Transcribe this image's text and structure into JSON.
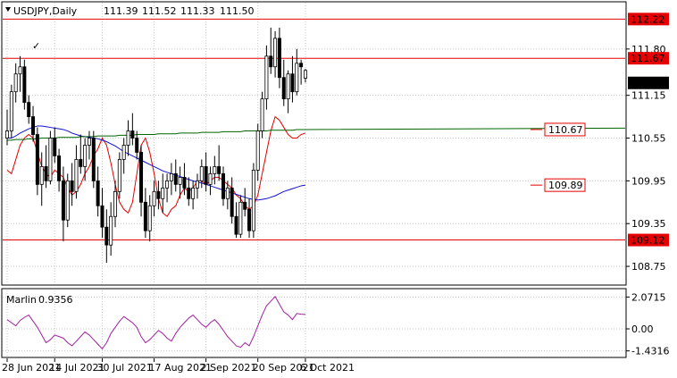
{
  "header": {
    "symbol": "USDJPY,Daily",
    "open": "111.39",
    "high": "111.52",
    "low": "111.33",
    "close": "111.50"
  },
  "price_axis_labels": [
    "111.80",
    "111.15",
    "110.55",
    "109.95",
    "109.35",
    "108.75"
  ],
  "indicator_axis_labels": [
    "2.0715",
    "0.00",
    "-1.4316"
  ],
  "date_labels": [
    "28 Jun 2021",
    "14 Jul 2021",
    "30 Jul 2021",
    "17 Aug 2021",
    "2 Sep 2021",
    "20 Sep 2021",
    "6 Oct 2021"
  ],
  "levels": [
    {
      "price": 112.22,
      "label": "112.22",
      "color": "#e60000",
      "style": "filled"
    },
    {
      "price": 111.67,
      "label": "111.67",
      "color": "#e60000",
      "style": "filled"
    },
    {
      "price": 109.12,
      "label": "109.12",
      "color": "#e60000",
      "style": "filled"
    }
  ],
  "current_price": {
    "value": 111.5,
    "label": "111.50",
    "color": "#000000"
  },
  "ma_labels": [
    {
      "price": 110.67,
      "label": "110.67",
      "color": "#e60000"
    },
    {
      "price": 109.89,
      "label": "109.89",
      "color": "#e60000"
    }
  ],
  "checkmark": {
    "glyph": "✓",
    "color": "#e60000"
  },
  "indicator": {
    "name": "Marlin",
    "value": "0.9356",
    "color": "#a020a0"
  },
  "colors": {
    "bull": "#ffffff",
    "bear": "#000000",
    "ma_red": "#e60000",
    "ma_blue": "#1010d0",
    "ma_green": "#006400",
    "grid": "#c8c8c8"
  },
  "chart_data": [
    {
      "type": "candlestick",
      "title": "USDJPY,Daily",
      "ylim": [
        108.5,
        112.45
      ],
      "y_ticks": [
        111.8,
        111.15,
        110.55,
        109.95,
        109.35,
        108.75
      ],
      "x_labels": [
        "28 Jun 2021",
        "14 Jul 2021",
        "30 Jul 2021",
        "17 Aug 2021",
        "2 Sep 2021",
        "20 Sep 2021",
        "6 Oct 2021"
      ],
      "horizontal_levels": [
        112.22,
        111.67,
        109.12
      ],
      "candles": [
        [
          110.55,
          110.95,
          110.45,
          110.65
        ],
        [
          110.65,
          111.3,
          110.55,
          111.2
        ],
        [
          111.2,
          111.6,
          111.05,
          111.45
        ],
        [
          111.45,
          111.7,
          111.2,
          111.55
        ],
        [
          111.55,
          111.65,
          110.95,
          111.05
        ],
        [
          111.05,
          111.15,
          110.75,
          110.85
        ],
        [
          110.85,
          111.0,
          110.5,
          110.6
        ],
        [
          110.6,
          110.7,
          109.75,
          109.9
        ],
        [
          109.9,
          110.35,
          109.6,
          110.15
        ],
        [
          110.15,
          110.45,
          109.85,
          109.95
        ],
        [
          109.95,
          110.65,
          109.9,
          110.55
        ],
        [
          110.55,
          110.7,
          110.2,
          110.3
        ],
        [
          110.3,
          110.4,
          109.8,
          109.95
        ],
        [
          109.95,
          110.15,
          109.1,
          109.4
        ],
        [
          109.4,
          110.05,
          109.3,
          109.95
        ],
        [
          109.95,
          110.2,
          109.6,
          109.8
        ],
        [
          109.8,
          110.45,
          109.7,
          110.25
        ],
        [
          110.25,
          110.6,
          110.05,
          110.15
        ],
        [
          110.15,
          110.55,
          109.95,
          110.45
        ],
        [
          110.45,
          110.65,
          110.25,
          110.55
        ],
        [
          110.55,
          110.65,
          109.85,
          109.95
        ],
        [
          109.95,
          110.15,
          109.45,
          109.6
        ],
        [
          109.6,
          109.85,
          109.15,
          109.3
        ],
        [
          109.3,
          109.55,
          108.8,
          109.05
        ],
        [
          109.05,
          109.65,
          108.9,
          109.45
        ],
        [
          109.45,
          109.95,
          109.3,
          109.8
        ],
        [
          109.8,
          110.35,
          109.7,
          110.25
        ],
        [
          110.25,
          110.55,
          110.05,
          110.45
        ],
        [
          110.45,
          110.8,
          110.3,
          110.65
        ],
        [
          110.65,
          110.9,
          110.45,
          110.55
        ],
        [
          110.55,
          110.65,
          110.25,
          110.35
        ],
        [
          110.35,
          110.45,
          109.45,
          109.65
        ],
        [
          109.65,
          109.85,
          109.15,
          109.25
        ],
        [
          109.25,
          109.75,
          109.1,
          109.6
        ],
        [
          109.6,
          109.95,
          109.45,
          109.8
        ],
        [
          109.8,
          109.95,
          109.55,
          109.7
        ],
        [
          109.7,
          110.05,
          109.5,
          109.85
        ],
        [
          109.85,
          110.05,
          109.65,
          109.95
        ],
        [
          109.95,
          110.2,
          109.75,
          110.05
        ],
        [
          110.05,
          110.25,
          109.8,
          109.9
        ],
        [
          109.9,
          110.15,
          109.7,
          110.0
        ],
        [
          110.0,
          110.2,
          109.75,
          109.85
        ],
        [
          109.85,
          110.0,
          109.6,
          109.7
        ],
        [
          109.7,
          109.95,
          109.55,
          109.85
        ],
        [
          109.85,
          110.05,
          109.7,
          109.95
        ],
        [
          109.95,
          110.25,
          109.85,
          110.15
        ],
        [
          110.15,
          110.35,
          109.8,
          109.9
        ],
        [
          109.9,
          110.15,
          109.75,
          110.05
        ],
        [
          110.05,
          110.3,
          109.9,
          110.15
        ],
        [
          110.15,
          110.45,
          109.95,
          110.05
        ],
        [
          110.05,
          110.15,
          109.6,
          109.7
        ],
        [
          109.7,
          109.95,
          109.55,
          109.85
        ],
        [
          109.85,
          110.0,
          109.35,
          109.45
        ],
        [
          109.45,
          109.65,
          109.15,
          109.2
        ],
        [
          109.2,
          109.75,
          109.15,
          109.65
        ],
        [
          109.65,
          109.85,
          109.45,
          109.55
        ],
        [
          109.55,
          109.7,
          109.15,
          109.25
        ],
        [
          109.25,
          110.2,
          109.15,
          110.1
        ],
        [
          110.1,
          110.75,
          109.95,
          110.65
        ],
        [
          110.65,
          111.2,
          110.55,
          111.1
        ],
        [
          111.1,
          111.85,
          110.95,
          111.7
        ],
        [
          111.7,
          112.1,
          111.45,
          111.55
        ],
        [
          111.55,
          112.05,
          111.4,
          111.95
        ],
        [
          111.95,
          112.1,
          111.25,
          111.4
        ],
        [
          111.4,
          111.65,
          111.0,
          111.1
        ],
        [
          111.1,
          111.5,
          110.9,
          111.45
        ],
        [
          111.45,
          111.7,
          111.05,
          111.2
        ],
        [
          111.2,
          111.8,
          111.15,
          111.6
        ],
        [
          111.6,
          111.65,
          111.3,
          111.55
        ],
        [
          111.39,
          111.52,
          111.33,
          111.5
        ]
      ],
      "series": [
        {
          "name": "",
          "color": "#e60000",
          "values": [
            110.1,
            110.05,
            110.25,
            110.45,
            110.55,
            110.6,
            110.55,
            110.35,
            110.15,
            110.05,
            110.0,
            110.1,
            110.05,
            110.0,
            109.85,
            109.75,
            109.8,
            109.9,
            110.05,
            110.15,
            110.3,
            110.4,
            110.55,
            110.45,
            110.2,
            109.9,
            109.65,
            109.55,
            109.5,
            109.65,
            110.05,
            110.45,
            110.55,
            110.35,
            110.05,
            109.7,
            109.5,
            109.45,
            109.55,
            109.6,
            109.75,
            109.85,
            109.8,
            109.85,
            109.95,
            109.95,
            109.9,
            109.95,
            110.0,
            110.0,
            109.95,
            109.9,
            109.85,
            109.75,
            109.7,
            109.6,
            109.55,
            109.6,
            109.75,
            110.05,
            110.35,
            110.65,
            110.85,
            110.8,
            110.7,
            110.6,
            110.55,
            110.55,
            110.6,
            110.62
          ]
        },
        {
          "name": "",
          "color": "#1010d0",
          "values": [
            110.55,
            110.55,
            110.58,
            110.62,
            110.65,
            110.68,
            110.7,
            110.72,
            110.72,
            110.71,
            110.7,
            110.69,
            110.68,
            110.67,
            110.65,
            110.62,
            110.6,
            110.58,
            110.57,
            110.56,
            110.55,
            110.54,
            110.52,
            110.5,
            110.47,
            110.44,
            110.4,
            110.36,
            110.33,
            110.3,
            110.27,
            110.24,
            110.21,
            110.18,
            110.15,
            110.12,
            110.09,
            110.07,
            110.05,
            110.03,
            110.01,
            109.99,
            109.97,
            109.95,
            109.93,
            109.92,
            109.9,
            109.88,
            109.86,
            109.84,
            109.82,
            109.8,
            109.78,
            109.76,
            109.74,
            109.72,
            109.7,
            109.69,
            109.68,
            109.69,
            109.7,
            109.72,
            109.74,
            109.77,
            109.8,
            109.82,
            109.84,
            109.86,
            109.88,
            109.89
          ]
        },
        {
          "name": "",
          "color": "#006400",
          "values": [
            110.52,
            110.52,
            110.53,
            110.53,
            110.53,
            110.54,
            110.54,
            110.54,
            110.55,
            110.55,
            110.55,
            110.55,
            110.56,
            110.56,
            110.56,
            110.56,
            110.56,
            110.57,
            110.57,
            110.57,
            110.57,
            110.58,
            110.58,
            110.58,
            110.58,
            110.58,
            110.59,
            110.59,
            110.59,
            110.59,
            110.6,
            110.6,
            110.6,
            110.6,
            110.6,
            110.61,
            110.61,
            110.61,
            110.61,
            110.61,
            110.62,
            110.62,
            110.62,
            110.62,
            110.62,
            110.63,
            110.63,
            110.63,
            110.63,
            110.63,
            110.64,
            110.64,
            110.64,
            110.64,
            110.64,
            110.65,
            110.65,
            110.65,
            110.65,
            110.65,
            110.65,
            110.66,
            110.66,
            110.66,
            110.66,
            110.66,
            110.66,
            110.67,
            110.67,
            110.67
          ]
        }
      ]
    },
    {
      "type": "line",
      "title": "Marlin 0.9356",
      "ylim": [
        -1.8,
        2.5
      ],
      "y_ticks": [
        2.0715,
        0.0,
        -1.4316
      ],
      "series": [
        {
          "name": "Marlin",
          "color": "#a020a0",
          "values": [
            0.6,
            0.4,
            0.2,
            0.55,
            0.75,
            0.9,
            0.5,
            0.1,
            -0.4,
            -0.9,
            -0.7,
            -0.4,
            -0.5,
            -0.6,
            -0.9,
            -1.1,
            -0.8,
            -0.5,
            -0.2,
            -0.4,
            -0.7,
            -1.0,
            -1.3,
            -0.9,
            -0.3,
            0.1,
            0.5,
            0.8,
            0.6,
            0.4,
            0.1,
            -0.5,
            -0.9,
            -0.7,
            -0.4,
            -0.1,
            -0.3,
            -0.6,
            -0.8,
            -0.3,
            0.1,
            0.4,
            0.7,
            0.9,
            0.6,
            0.3,
            0.1,
            0.4,
            0.6,
            0.3,
            -0.1,
            -0.5,
            -0.8,
            -1.1,
            -1.2,
            -0.9,
            -1.1,
            -0.5,
            0.2,
            0.9,
            1.5,
            1.8,
            2.1,
            1.6,
            1.1,
            0.9,
            0.6,
            1.0,
            0.95,
            0.94
          ]
        }
      ]
    }
  ]
}
